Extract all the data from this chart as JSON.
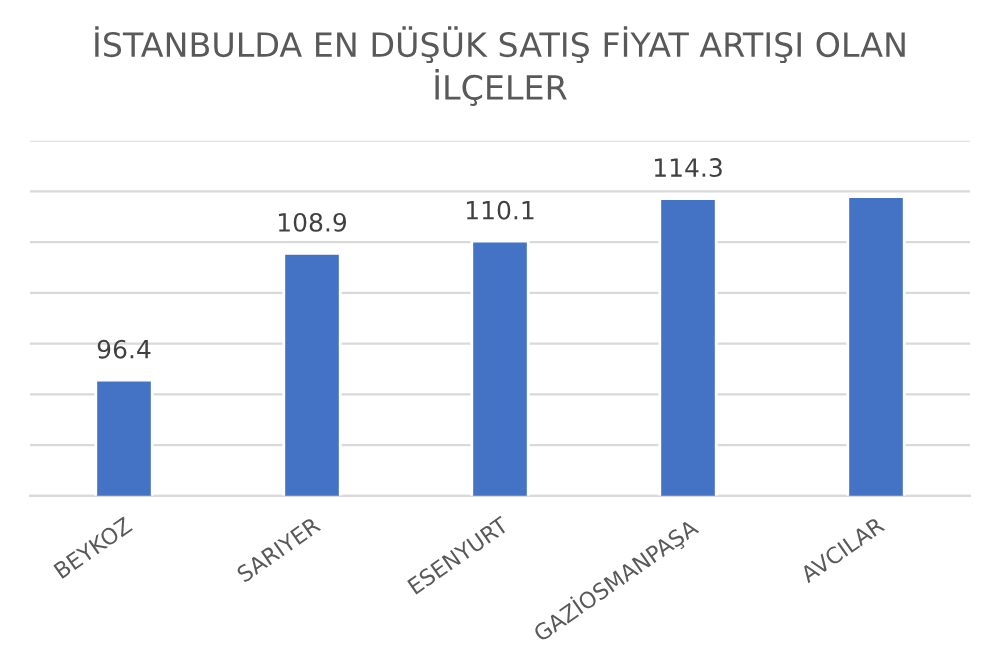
{
  "chart_data": {
    "type": "bar",
    "title": "İSTANBULDA EN DÜŞÜK SATIŞ FİYAT ARTIŞI OLAN\nİLÇELER",
    "categories": [
      "BEYKOZ",
      "SARIYER",
      "ESENYURT",
      "GAZİOSMANPAŞA",
      "AVCILAR"
    ],
    "values": [
      96.4,
      108.9,
      110.1,
      114.3,
      114.5
    ],
    "value_labels": [
      "96.4",
      "108.9",
      "110.1",
      "114.3",
      null
    ],
    "color": "#4472c4",
    "ylim": [
      85,
      120
    ],
    "yticks": [
      {
        "value": 85,
        "label": null
      },
      {
        "value": 90,
        "label": null
      },
      {
        "value": 95,
        "label": null
      },
      {
        "value": 100,
        "label": null
      },
      {
        "value": 105,
        "label": null
      },
      {
        "value": 110,
        "label": null
      },
      {
        "value": 115,
        "label": null
      },
      {
        "value": 120,
        "label": null
      }
    ],
    "grid": "y",
    "tick_labels": "x"
  }
}
